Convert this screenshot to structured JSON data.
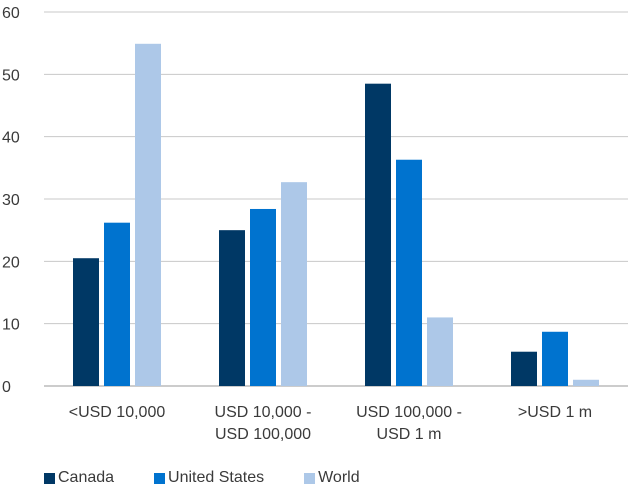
{
  "chart_data": {
    "type": "bar",
    "title": "",
    "xlabel": "",
    "ylabel": "",
    "ylim": [
      0,
      60
    ],
    "yticks": [
      0,
      10,
      20,
      30,
      40,
      50,
      60
    ],
    "grid": true,
    "legend_position": "bottom-left",
    "categories": [
      [
        "<USD 10,000"
      ],
      [
        "USD 10,000 -",
        "USD 100,000"
      ],
      [
        "USD 100,000 -",
        "USD 1 m"
      ],
      [
        ">USD 1 m"
      ]
    ],
    "series": [
      {
        "name": "Canada",
        "color": "#003865",
        "values": [
          20.5,
          25.0,
          48.5,
          5.5
        ]
      },
      {
        "name": "United States",
        "color": "#0073cf",
        "values": [
          26.2,
          28.4,
          36.3,
          8.7
        ]
      },
      {
        "name": "World",
        "color": "#adc8e8",
        "values": [
          54.9,
          32.7,
          11.0,
          1.0
        ]
      }
    ]
  }
}
